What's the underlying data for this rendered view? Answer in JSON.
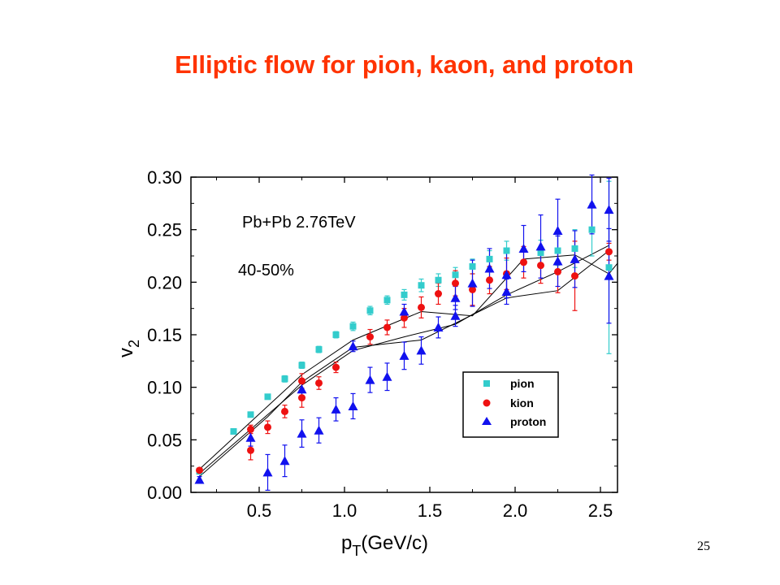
{
  "slide": {
    "title": "Elliptic flow for pion, kaon, and proton",
    "page_number": "25"
  },
  "colors": {
    "title": "#ff3300",
    "pion": "#33cccc",
    "kion": "#ee1111",
    "proton": "#1111ee",
    "curves": "#000000"
  },
  "chart_data": {
    "type": "scatter",
    "xlabel_main": "p",
    "xlabel_sub": "T",
    "xlabel_unit": "(GeV/c)",
    "ylabel_main": "v",
    "ylabel_sub": "2",
    "xlim": [
      0.1,
      2.6
    ],
    "ylim": [
      0.0,
      0.3
    ],
    "x_ticks": [
      0.5,
      1.0,
      1.5,
      2.0,
      2.5
    ],
    "x_tick_labels": [
      "0.5",
      "1.0",
      "1.5",
      "2.0",
      "2.5"
    ],
    "y_ticks": [
      0.0,
      0.05,
      0.1,
      0.15,
      0.2,
      0.25,
      0.3
    ],
    "y_tick_labels": [
      "0.00",
      "0.05",
      "0.10",
      "0.15",
      "0.20",
      "0.25",
      "0.30"
    ],
    "annotations": [
      "Pb+Pb 2.76TeV",
      "40-50%"
    ],
    "legend_position": "lower-right",
    "series": [
      {
        "name": "pion",
        "marker": "square",
        "points": [
          {
            "x": 0.15,
            "y": 0.02,
            "err": 0.002
          },
          {
            "x": 0.35,
            "y": 0.058,
            "err": 0.002
          },
          {
            "x": 0.45,
            "y": 0.074,
            "err": 0.002
          },
          {
            "x": 0.55,
            "y": 0.091,
            "err": 0.002
          },
          {
            "x": 0.65,
            "y": 0.108,
            "err": 0.003
          },
          {
            "x": 0.75,
            "y": 0.121,
            "err": 0.003
          },
          {
            "x": 0.85,
            "y": 0.136,
            "err": 0.003
          },
          {
            "x": 0.95,
            "y": 0.15,
            "err": 0.003
          },
          {
            "x": 1.05,
            "y": 0.158,
            "err": 0.004
          },
          {
            "x": 1.15,
            "y": 0.173,
            "err": 0.004
          },
          {
            "x": 1.25,
            "y": 0.183,
            "err": 0.004
          },
          {
            "x": 1.35,
            "y": 0.188,
            "err": 0.005
          },
          {
            "x": 1.45,
            "y": 0.197,
            "err": 0.006
          },
          {
            "x": 1.55,
            "y": 0.202,
            "err": 0.006
          },
          {
            "x": 1.65,
            "y": 0.207,
            "err": 0.007
          },
          {
            "x": 1.75,
            "y": 0.215,
            "err": 0.007
          },
          {
            "x": 1.85,
            "y": 0.222,
            "err": 0.008
          },
          {
            "x": 1.95,
            "y": 0.23,
            "err": 0.009
          },
          {
            "x": 2.15,
            "y": 0.228,
            "err": 0.012
          },
          {
            "x": 2.25,
            "y": 0.23,
            "err": 0.014
          },
          {
            "x": 2.35,
            "y": 0.232,
            "err": 0.018
          },
          {
            "x": 2.45,
            "y": 0.25,
            "err": 0.025
          },
          {
            "x": 2.55,
            "y": 0.214,
            "err": 0.082
          }
        ]
      },
      {
        "name": "kion",
        "marker": "circle",
        "points": [
          {
            "x": 0.15,
            "y": 0.021,
            "err": 0.002
          },
          {
            "x": 0.45,
            "y": 0.06,
            "err": 0.004
          },
          {
            "x": 0.45,
            "y": 0.04,
            "err": 0.009
          },
          {
            "x": 0.55,
            "y": 0.062,
            "err": 0.006
          },
          {
            "x": 0.65,
            "y": 0.077,
            "err": 0.006
          },
          {
            "x": 0.75,
            "y": 0.106,
            "err": 0.007
          },
          {
            "x": 0.75,
            "y": 0.09,
            "err": 0.009
          },
          {
            "x": 0.85,
            "y": 0.104,
            "err": 0.006
          },
          {
            "x": 0.95,
            "y": 0.119,
            "err": 0.005
          },
          {
            "x": 1.15,
            "y": 0.148,
            "err": 0.007
          },
          {
            "x": 1.25,
            "y": 0.157,
            "err": 0.007
          },
          {
            "x": 1.35,
            "y": 0.166,
            "err": 0.009
          },
          {
            "x": 1.45,
            "y": 0.176,
            "err": 0.01
          },
          {
            "x": 1.55,
            "y": 0.189,
            "err": 0.01
          },
          {
            "x": 1.65,
            "y": 0.199,
            "err": 0.012
          },
          {
            "x": 1.75,
            "y": 0.193,
            "err": 0.015
          },
          {
            "x": 1.85,
            "y": 0.202,
            "err": 0.013
          },
          {
            "x": 1.95,
            "y": 0.208,
            "err": 0.015
          },
          {
            "x": 2.05,
            "y": 0.219,
            "err": 0.015
          },
          {
            "x": 2.15,
            "y": 0.216,
            "err": 0.017
          },
          {
            "x": 2.25,
            "y": 0.21,
            "err": 0.02
          },
          {
            "x": 2.35,
            "y": 0.206,
            "err": 0.033
          },
          {
            "x": 2.55,
            "y": 0.229,
            "err": 0.008
          }
        ]
      },
      {
        "name": "proton",
        "marker": "triangle",
        "points": [
          {
            "x": 0.15,
            "y": 0.012,
            "err": 0.003
          },
          {
            "x": 0.45,
            "y": 0.052,
            "err": 0.008
          },
          {
            "x": 0.55,
            "y": 0.019,
            "err": 0.017
          },
          {
            "x": 0.65,
            "y": 0.03,
            "err": 0.015
          },
          {
            "x": 0.75,
            "y": 0.056,
            "err": 0.013
          },
          {
            "x": 0.75,
            "y": 0.098,
            "err": 0.008
          },
          {
            "x": 0.85,
            "y": 0.059,
            "err": 0.012
          },
          {
            "x": 0.95,
            "y": 0.079,
            "err": 0.011
          },
          {
            "x": 1.05,
            "y": 0.082,
            "err": 0.012
          },
          {
            "x": 1.05,
            "y": 0.139,
            "err": 0.005
          },
          {
            "x": 1.15,
            "y": 0.107,
            "err": 0.012
          },
          {
            "x": 1.25,
            "y": 0.11,
            "err": 0.013
          },
          {
            "x": 1.35,
            "y": 0.13,
            "err": 0.013
          },
          {
            "x": 1.35,
            "y": 0.172,
            "err": 0.007
          },
          {
            "x": 1.45,
            "y": 0.135,
            "err": 0.013
          },
          {
            "x": 1.55,
            "y": 0.157,
            "err": 0.01
          },
          {
            "x": 1.65,
            "y": 0.168,
            "err": 0.01
          },
          {
            "x": 1.65,
            "y": 0.185,
            "err": 0.011
          },
          {
            "x": 1.75,
            "y": 0.199,
            "err": 0.022
          },
          {
            "x": 1.85,
            "y": 0.213,
            "err": 0.019
          },
          {
            "x": 1.95,
            "y": 0.191,
            "err": 0.012
          },
          {
            "x": 1.95,
            "y": 0.207,
            "err": 0.022
          },
          {
            "x": 2.05,
            "y": 0.232,
            "err": 0.022
          },
          {
            "x": 2.15,
            "y": 0.234,
            "err": 0.03
          },
          {
            "x": 2.25,
            "y": 0.22,
            "err": 0.024
          },
          {
            "x": 2.25,
            "y": 0.249,
            "err": 0.03
          },
          {
            "x": 2.35,
            "y": 0.222,
            "err": 0.027
          },
          {
            "x": 2.45,
            "y": 0.274,
            "err": 0.028
          },
          {
            "x": 2.55,
            "y": 0.206,
            "err": 0.045
          },
          {
            "x": 2.55,
            "y": 0.269,
            "err": 0.03
          }
        ]
      }
    ],
    "curves": [
      {
        "points": [
          [
            0.15,
            0.015
          ],
          [
            0.55,
            0.072
          ],
          [
            0.75,
            0.105
          ],
          [
            1.05,
            0.138
          ],
          [
            1.45,
            0.145
          ],
          [
            1.95,
            0.185
          ],
          [
            2.25,
            0.192
          ],
          [
            2.55,
            0.23
          ]
        ]
      },
      {
        "points": [
          [
            0.15,
            0.018
          ],
          [
            0.75,
            0.102
          ],
          [
            1.05,
            0.135
          ],
          [
            1.35,
            0.148
          ],
          [
            1.65,
            0.16
          ],
          [
            1.95,
            0.188
          ],
          [
            2.25,
            0.21
          ],
          [
            2.55,
            0.235
          ]
        ]
      },
      {
        "points": [
          [
            0.15,
            0.022
          ],
          [
            0.75,
            0.112
          ],
          [
            1.05,
            0.145
          ],
          [
            1.45,
            0.172
          ],
          [
            1.75,
            0.168
          ],
          [
            2.05,
            0.222
          ],
          [
            2.35,
            0.226
          ],
          [
            2.55,
            0.208
          ],
          [
            2.6,
            0.218
          ]
        ]
      }
    ]
  }
}
